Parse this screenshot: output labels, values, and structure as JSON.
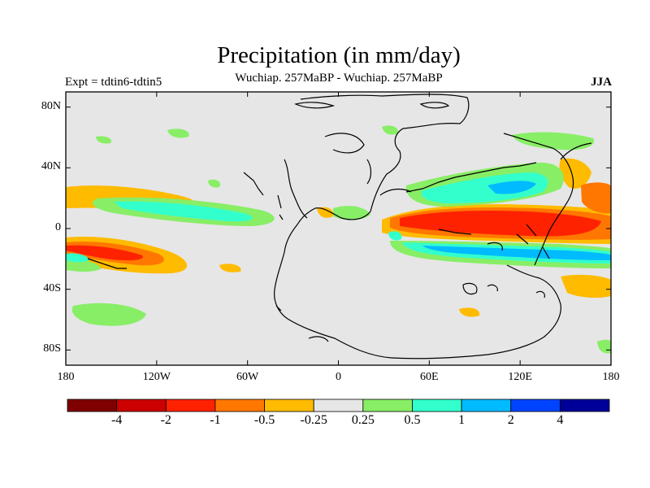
{
  "title": "Precipitation (in mm/day)",
  "subtitle": "Wuchiap. 257MaBP - Wuchiap. 257MaBP",
  "left_label": "Expt = tdtin6-tdtin5",
  "right_label": "JJA",
  "lat_ticks": [
    {
      "value": 80,
      "label": "80N"
    },
    {
      "value": 40,
      "label": "40N"
    },
    {
      "value": 0,
      "label": "0"
    },
    {
      "value": -40,
      "label": "40S"
    },
    {
      "value": -80,
      "label": "80S"
    }
  ],
  "lon_ticks": [
    {
      "value": -180,
      "label": "180"
    },
    {
      "value": -120,
      "label": "120W"
    },
    {
      "value": -60,
      "label": "60W"
    },
    {
      "value": 0,
      "label": "0"
    },
    {
      "value": 60,
      "label": "60E"
    },
    {
      "value": 120,
      "label": "120E"
    },
    {
      "value": 180,
      "label": "180"
    }
  ],
  "colorbar": {
    "colors": [
      "#7f0000",
      "#cc0000",
      "#ff2200",
      "#ff7700",
      "#ffbb00",
      "#e6e6e6",
      "#88ee66",
      "#33ffcc",
      "#00bbff",
      "#0044ff",
      "#000099"
    ],
    "labels": [
      "-4",
      "-2",
      "-1",
      "-0.5",
      "-0.25",
      "0.25",
      "0.5",
      "1",
      "2",
      "4"
    ]
  },
  "colors": {
    "background": "#e6e6e6",
    "coast": "#000000"
  }
}
